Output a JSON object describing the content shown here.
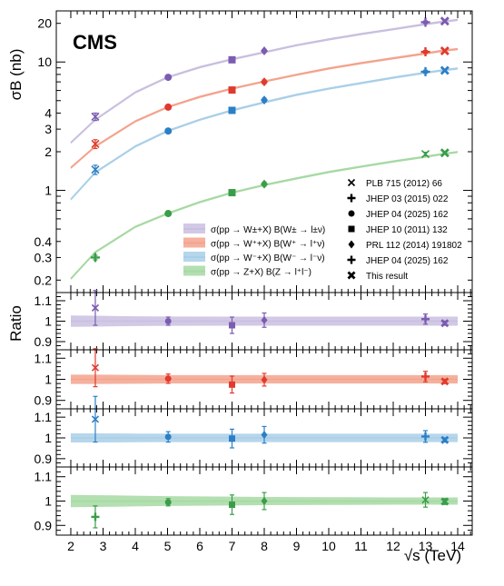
{
  "chart_data": {
    "type": "line",
    "experiment_label": "CMS",
    "xlabel": "√s (TeV)",
    "xlim": [
      1.55,
      14.45
    ],
    "xticks": [
      "2",
      "3",
      "4",
      "5",
      "6",
      "7",
      "8",
      "9",
      "10",
      "11",
      "12",
      "13",
      "14"
    ],
    "main_panel": {
      "ylabel": "σB (nb)",
      "yscale": "log",
      "ylim": [
        0.16,
        25
      ],
      "yticks": [
        "0.2",
        "0.3",
        "0.4",
        "1",
        "2",
        "3",
        "4",
        "10",
        "20"
      ],
      "theory_x": [
        2,
        2.76,
        4,
        5,
        6,
        7,
        8,
        9,
        10,
        11,
        12,
        13,
        13.6,
        14
      ],
      "series": [
        {
          "name": "σ(pp → W±+X) B(W± → l±ν)",
          "color": "#7b5cb0",
          "band_color": "#c9bfe0",
          "theory": [
            2.35,
            3.55,
            5.8,
            7.6,
            9.1,
            10.5,
            11.9,
            13.5,
            15.0,
            16.5,
            18.0,
            19.7,
            20.7,
            21.3
          ],
          "points": [
            {
              "x": 2.76,
              "y": 3.75,
              "err": 0.25,
              "marker": "cross"
            },
            {
              "x": 5.02,
              "y": 7.6,
              "err": 0.2,
              "marker": "circle"
            },
            {
              "x": 7,
              "y": 10.4,
              "err": 0.3,
              "marker": "square"
            },
            {
              "x": 8,
              "y": 12.2,
              "err": 0.35,
              "marker": "diamond"
            },
            {
              "x": 13,
              "y": 20.4,
              "err": 0.5,
              "marker": "plus"
            },
            {
              "x": 13.6,
              "y": 20.8,
              "err": 0.4,
              "marker": "x"
            }
          ]
        },
        {
          "name": "σ(pp → W⁺+X) B(W⁺ → l⁺ν)",
          "color": "#e03a2e",
          "band_color": "#f3a38d",
          "theory": [
            1.5,
            2.2,
            3.45,
            4.45,
            5.35,
            6.2,
            7.05,
            7.95,
            8.9,
            9.8,
            10.7,
            11.65,
            12.3,
            12.6
          ],
          "points": [
            {
              "x": 2.76,
              "y": 2.3,
              "err": 0.18,
              "marker": "cross"
            },
            {
              "x": 5.02,
              "y": 4.45,
              "err": 0.12,
              "marker": "circle"
            },
            {
              "x": 7,
              "y": 6.05,
              "err": 0.2,
              "marker": "square"
            },
            {
              "x": 8,
              "y": 7.0,
              "err": 0.25,
              "marker": "diamond"
            },
            {
              "x": 13,
              "y": 12.0,
              "err": 0.3,
              "marker": "plus"
            },
            {
              "x": 13.6,
              "y": 12.2,
              "err": 0.25,
              "marker": "x"
            }
          ]
        },
        {
          "name": "σ(pp → W⁻+X) B(W⁻ → l⁻ν)",
          "color": "#2b7fc6",
          "band_color": "#a9cfe8",
          "theory": [
            0.85,
            1.38,
            2.2,
            2.9,
            3.55,
            4.2,
            4.85,
            5.55,
            6.2,
            6.85,
            7.55,
            8.25,
            8.65,
            8.9
          ],
          "points": [
            {
              "x": 2.76,
              "y": 1.45,
              "err": 0.12,
              "marker": "cross"
            },
            {
              "x": 5.02,
              "y": 2.9,
              "err": 0.08,
              "marker": "circle"
            },
            {
              "x": 7,
              "y": 4.2,
              "err": 0.15,
              "marker": "square"
            },
            {
              "x": 8,
              "y": 5.05,
              "err": 0.18,
              "marker": "diamond"
            },
            {
              "x": 13,
              "y": 8.4,
              "err": 0.22,
              "marker": "plus"
            },
            {
              "x": 13.6,
              "y": 8.6,
              "err": 0.2,
              "marker": "x"
            }
          ]
        },
        {
          "name": "σ(pp → Z+X) B(Z → l⁺l⁻)",
          "color": "#3a9d4a",
          "band_color": "#a6d9a3",
          "theory": [
            0.205,
            0.33,
            0.52,
            0.66,
            0.81,
            0.96,
            1.1,
            1.24,
            1.39,
            1.53,
            1.68,
            1.83,
            1.93,
            1.99
          ],
          "points": [
            {
              "x": 2.76,
              "y": 0.3,
              "err": 0.012,
              "marker": "plus"
            },
            {
              "x": 5.02,
              "y": 0.66,
              "err": 0.015,
              "marker": "circle"
            },
            {
              "x": 7,
              "y": 0.96,
              "err": 0.03,
              "marker": "square"
            },
            {
              "x": 8,
              "y": 1.12,
              "err": 0.04,
              "marker": "diamond"
            },
            {
              "x": 13,
              "y": 1.92,
              "err": 0.06,
              "marker": "cross"
            },
            {
              "x": 13.6,
              "y": 1.96,
              "err": 0.04,
              "marker": "x"
            }
          ]
        }
      ]
    },
    "ratio_panels": [
      {
        "ylabel": "Ratio",
        "ylim": [
          0.86,
          1.14
        ],
        "yticks": [
          "0.9",
          "1",
          "1.1"
        ],
        "color": "#7b5cb0",
        "band_color": "#c9bfe0",
        "band_halfwidth": [
          0.028,
          0.026,
          0.024,
          0.023,
          0.022,
          0.022,
          0.022,
          0.022,
          0.022,
          0.022
        ],
        "band_x": [
          2,
          3,
          4,
          5,
          7,
          8,
          10,
          12,
          13,
          14
        ],
        "points": [
          {
            "x": 2.76,
            "y": 1.065,
            "err": 0.085,
            "marker": "cross"
          },
          {
            "x": 5.02,
            "y": 1.0,
            "err": 0.02,
            "marker": "circle"
          },
          {
            "x": 7,
            "y": 0.98,
            "err": 0.04,
            "marker": "square"
          },
          {
            "x": 8,
            "y": 1.005,
            "err": 0.035,
            "marker": "diamond"
          },
          {
            "x": 13,
            "y": 1.01,
            "err": 0.025,
            "marker": "plus"
          },
          {
            "x": 13.6,
            "y": 0.99,
            "err": 0.01,
            "marker": "x"
          }
        ]
      },
      {
        "ylim": [
          0.86,
          1.14
        ],
        "yticks": [
          "0.9",
          "1",
          "1.1"
        ],
        "color": "#e03a2e",
        "band_color": "#f3a38d",
        "band_halfwidth": [
          0.022,
          0.022,
          0.021,
          0.02,
          0.02,
          0.02,
          0.02,
          0.02,
          0.02,
          0.02
        ],
        "band_x": [
          2,
          3,
          4,
          5,
          7,
          8,
          10,
          12,
          13,
          14
        ],
        "points": [
          {
            "x": 2.76,
            "y": 1.055,
            "err": 0.09,
            "marker": "cross"
          },
          {
            "x": 5.02,
            "y": 1.003,
            "err": 0.022,
            "marker": "circle"
          },
          {
            "x": 7,
            "y": 0.975,
            "err": 0.04,
            "marker": "square"
          },
          {
            "x": 8,
            "y": 0.998,
            "err": 0.03,
            "marker": "diamond"
          },
          {
            "x": 13,
            "y": 1.013,
            "err": 0.025,
            "marker": "plus"
          },
          {
            "x": 13.6,
            "y": 0.99,
            "err": 0.01,
            "marker": "x"
          }
        ]
      },
      {
        "ylim": [
          0.86,
          1.14
        ],
        "yticks": [
          "0.9",
          "1",
          "1.1"
        ],
        "color": "#2b7fc6",
        "band_color": "#a9cfe8",
        "band_halfwidth": [
          0.022,
          0.022,
          0.021,
          0.02,
          0.02,
          0.02,
          0.02,
          0.02,
          0.02,
          0.02
        ],
        "band_x": [
          2,
          3,
          4,
          5,
          7,
          8,
          10,
          12,
          13,
          14
        ],
        "points": [
          {
            "x": 2.76,
            "y": 1.09,
            "err": 0.11,
            "marker": "cross"
          },
          {
            "x": 5.02,
            "y": 1.005,
            "err": 0.025,
            "marker": "circle"
          },
          {
            "x": 7,
            "y": 0.997,
            "err": 0.045,
            "marker": "square"
          },
          {
            "x": 8,
            "y": 1.015,
            "err": 0.04,
            "marker": "diamond"
          },
          {
            "x": 13,
            "y": 1.007,
            "err": 0.028,
            "marker": "plus"
          },
          {
            "x": 13.6,
            "y": 0.99,
            "err": 0.01,
            "marker": "x"
          }
        ]
      },
      {
        "ylim": [
          0.86,
          1.14
        ],
        "yticks": [
          "0.9",
          "1",
          "1.1"
        ],
        "color": "#3a9d4a",
        "band_color": "#a6d9a3",
        "band_halfwidth": [
          0.025,
          0.024,
          0.022,
          0.02,
          0.018,
          0.017,
          0.016,
          0.015,
          0.015,
          0.015
        ],
        "band_x": [
          2,
          3,
          4,
          5,
          7,
          8,
          10,
          12,
          13,
          14
        ],
        "points": [
          {
            "x": 2.76,
            "y": 0.935,
            "err": 0.045,
            "marker": "plus"
          },
          {
            "x": 5.02,
            "y": 0.995,
            "err": 0.015,
            "marker": "circle"
          },
          {
            "x": 7,
            "y": 0.985,
            "err": 0.04,
            "marker": "square"
          },
          {
            "x": 8,
            "y": 1.0,
            "err": 0.035,
            "marker": "diamond"
          },
          {
            "x": 13,
            "y": 1.005,
            "err": 0.03,
            "marker": "cross"
          },
          {
            "x": 13.6,
            "y": 0.998,
            "err": 0.012,
            "marker": "x"
          }
        ]
      }
    ],
    "legend_references": [
      {
        "marker": "cross",
        "label": "PLB 715 (2012) 66"
      },
      {
        "marker": "plus",
        "label": "JHEP 03 (2015) 022"
      },
      {
        "marker": "circle",
        "label": "JHEP 04 (2025) 162"
      },
      {
        "marker": "square",
        "label": "JHEP 10 (2011) 132"
      },
      {
        "marker": "diamond",
        "label": "PRL 112 (2014) 191802"
      },
      {
        "marker": "plus",
        "label": "JHEP 04 (2025) 162"
      },
      {
        "marker": "x",
        "label": "This result"
      }
    ],
    "legend_references_placement": "bottom-right",
    "legend_series_placement": "bottom-center",
    "grid": false
  }
}
